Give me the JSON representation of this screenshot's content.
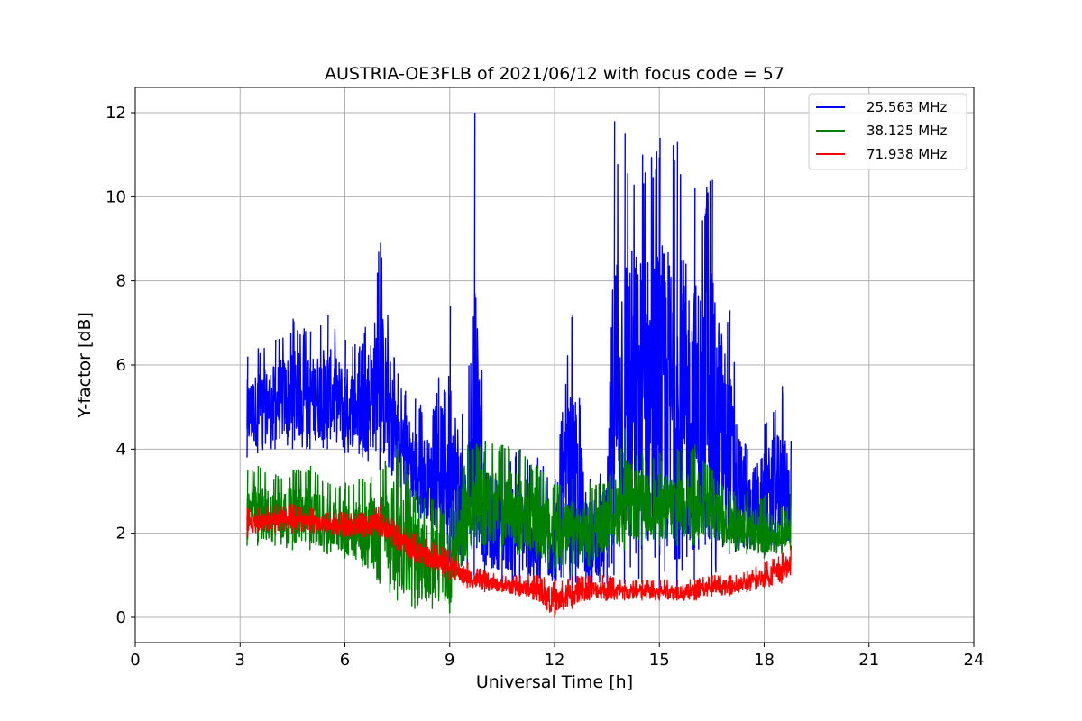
{
  "chart_data": {
    "type": "line",
    "title": "AUSTRIA-OE3FLB of 2021/06/12 with focus code = 57",
    "xlabel": "Universal Time [h]",
    "ylabel": "Y-factor [dB]",
    "xlim": [
      0,
      24
    ],
    "ylim": [
      -0.6,
      12.6
    ],
    "xticks": [
      0,
      3,
      6,
      9,
      12,
      15,
      18,
      21,
      24
    ],
    "yticks": [
      0,
      2,
      4,
      6,
      8,
      10,
      12
    ],
    "grid": true,
    "legend_position": "top-right",
    "series": [
      {
        "name": "25.563 MHz",
        "color": "#0000ff",
        "x": [
          3.2,
          3.5,
          4.0,
          4.5,
          5.0,
          5.5,
          6.0,
          6.5,
          7.0,
          7.5,
          8.0,
          8.5,
          9.0,
          9.5,
          9.7,
          10.0,
          10.5,
          11.0,
          11.5,
          12.0,
          12.5,
          13.0,
          13.5,
          13.7,
          14.0,
          14.5,
          15.0,
          15.5,
          16.0,
          16.5,
          17.0,
          17.5,
          18.0,
          18.5,
          18.75
        ],
        "min": [
          3.8,
          3.9,
          4.0,
          4.0,
          4.0,
          4.0,
          3.9,
          3.8,
          3.5,
          3.0,
          2.5,
          2.0,
          1.3,
          1.0,
          1.0,
          1.0,
          0.9,
          0.8,
          0.7,
          0.6,
          0.7,
          0.8,
          0.8,
          1.0,
          0.8,
          0.8,
          0.6,
          0.6,
          0.9,
          0.8,
          1.5,
          1.5,
          1.5,
          1.6,
          1.8
        ],
        "max": [
          6.2,
          6.4,
          6.6,
          7.1,
          6.8,
          7.2,
          6.6,
          6.5,
          8.9,
          5.8,
          5.2,
          4.8,
          7.4,
          4.0,
          12.0,
          4.2,
          4.0,
          4.0,
          3.8,
          3.3,
          7.2,
          3.3,
          3.8,
          11.8,
          11.5,
          11.0,
          11.4,
          11.3,
          10.2,
          10.4,
          7.3,
          4.0,
          4.6,
          5.5,
          4.2
        ]
      },
      {
        "name": "38.125 MHz",
        "color": "#008000",
        "x": [
          3.2,
          3.5,
          4.0,
          4.5,
          5.0,
          5.5,
          6.0,
          6.5,
          7.0,
          7.5,
          8.0,
          8.5,
          9.0,
          9.5,
          10.0,
          10.5,
          11.0,
          11.5,
          12.0,
          12.5,
          13.0,
          13.5,
          14.0,
          14.5,
          15.0,
          15.5,
          16.0,
          16.5,
          17.0,
          17.5,
          18.0,
          18.5,
          18.75
        ],
        "min": [
          1.7,
          1.7,
          1.7,
          1.6,
          1.6,
          1.5,
          1.4,
          1.2,
          0.8,
          0.4,
          0.2,
          0.2,
          0.1,
          1.4,
          1.5,
          1.5,
          1.5,
          1.4,
          1.0,
          1.0,
          1.2,
          1.5,
          1.6,
          1.7,
          1.7,
          1.7,
          1.7,
          1.8,
          1.6,
          1.5,
          1.4,
          1.5,
          1.6
        ],
        "max": [
          3.5,
          3.6,
          3.4,
          3.5,
          3.6,
          3.2,
          3.2,
          3.3,
          3.5,
          4.2,
          3.0,
          2.8,
          2.6,
          4.1,
          4.2,
          4.1,
          4.0,
          3.6,
          3.2,
          3.3,
          3.2,
          3.2,
          4.5,
          3.9,
          3.9,
          4.0,
          4.1,
          3.5,
          3.0,
          3.0,
          2.9,
          2.6,
          3.2
        ]
      },
      {
        "name": "71.938 MHz",
        "color": "#ff0000",
        "x": [
          3.2,
          3.5,
          4.0,
          4.5,
          5.0,
          5.5,
          6.0,
          6.5,
          7.0,
          7.5,
          8.0,
          8.5,
          9.0,
          9.5,
          10.0,
          10.5,
          11.0,
          11.5,
          12.0,
          12.5,
          13.0,
          13.5,
          14.0,
          14.5,
          15.0,
          15.5,
          16.0,
          16.5,
          17.0,
          17.5,
          18.0,
          18.5,
          18.75
        ],
        "min": [
          1.9,
          2.0,
          2.0,
          2.0,
          2.0,
          2.0,
          1.9,
          1.9,
          1.9,
          1.6,
          1.3,
          1.1,
          0.9,
          0.7,
          0.6,
          0.6,
          0.5,
          0.4,
          0.0,
          0.2,
          0.4,
          0.4,
          0.4,
          0.4,
          0.4,
          0.4,
          0.4,
          0.5,
          0.5,
          0.6,
          0.7,
          0.8,
          1.0
        ],
        "max": [
          2.6,
          2.6,
          2.7,
          2.7,
          2.6,
          2.5,
          2.5,
          2.5,
          2.7,
          2.2,
          2.0,
          1.8,
          1.6,
          1.3,
          1.1,
          1.0,
          1.0,
          1.0,
          0.9,
          1.0,
          1.0,
          1.0,
          0.9,
          0.9,
          0.9,
          0.9,
          0.9,
          1.0,
          1.0,
          1.1,
          1.3,
          1.5,
          1.7
        ]
      }
    ]
  }
}
